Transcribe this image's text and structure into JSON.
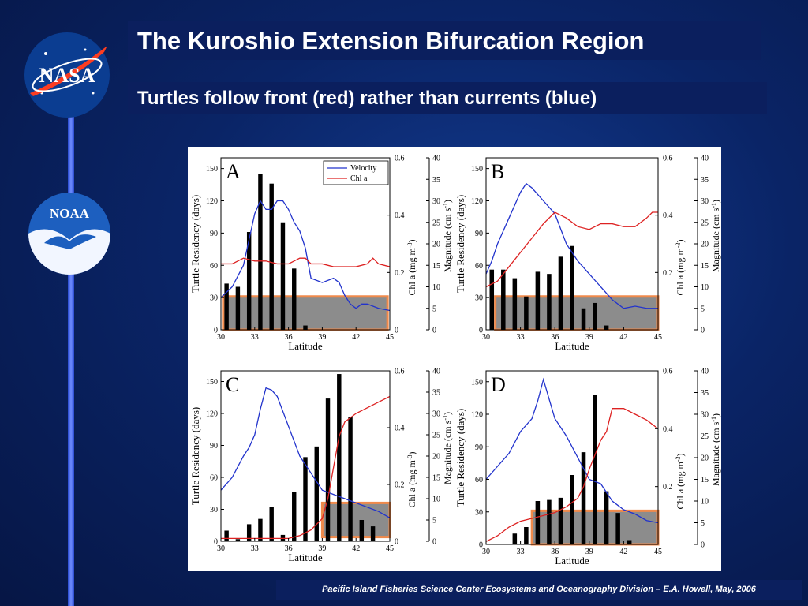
{
  "slide": {
    "title": "The Kuroshio Extension Bifurcation Region",
    "subtitle": "Turtles follow front (red) rather than currents (blue)",
    "footer": "Pacific Island Fisheries Science Center Ecosystems and Oceanography Division – E.A. Howell, May, 2006",
    "logos": {
      "nasa_text": "NASA",
      "noaa_text": "NOAA"
    }
  },
  "colors": {
    "velocity": "#2233cc",
    "chl": "#dd2222",
    "bars": "#000000",
    "box_fill": "#8c8c8c",
    "box_edge": "#f08a4b"
  },
  "chart_data": [
    {
      "panel": "A",
      "type": "bar",
      "xlabel": "Latitude",
      "ylabel": "Turtle Residency (days)",
      "y2label": "Chl a (mg m^-3)",
      "y3label": "Magnitude (cm s^-1)",
      "xlim": [
        30,
        45
      ],
      "ylim": [
        0,
        160
      ],
      "y2lim": [
        0,
        0.6
      ],
      "y3lim": [
        0,
        40
      ],
      "xticks": [
        30,
        33,
        36,
        39,
        42,
        45
      ],
      "yticks": [
        0,
        30,
        60,
        90,
        120,
        150
      ],
      "y2ticks": [
        0,
        0.2,
        0.4,
        0.6
      ],
      "y3ticks": [
        0,
        5,
        10,
        15,
        20,
        25,
        30,
        35,
        40
      ],
      "legend": [
        "Velocity",
        "Chl a"
      ],
      "bars": {
        "x": [
          30.5,
          31.5,
          32.5,
          33.5,
          34.5,
          35.5,
          36.5,
          37.5
        ],
        "values": [
          43,
          40,
          91,
          145,
          136,
          100,
          57,
          4
        ]
      },
      "box": {
        "x": [
          30.2,
          44.8
        ],
        "y": [
          0,
          31
        ]
      },
      "velocity": {
        "x": [
          30,
          31,
          32,
          33,
          33.5,
          34,
          34.5,
          35,
          35.5,
          36,
          36.5,
          37,
          37.5,
          38,
          39,
          40,
          40.5,
          41,
          41.5,
          42,
          42.5,
          43,
          44,
          45
        ],
        "values": [
          7.5,
          10,
          15,
          27,
          30,
          28,
          28,
          30,
          30,
          28,
          25,
          23,
          19,
          12,
          11,
          12,
          11,
          8,
          6,
          5,
          6,
          6,
          5,
          4.5
        ]
      },
      "chl": {
        "x": [
          30,
          31,
          32,
          33,
          34,
          35,
          36,
          36.5,
          37,
          37.5,
          38,
          39,
          40,
          41,
          42,
          43,
          43.5,
          44,
          45
        ],
        "values": [
          0.23,
          0.23,
          0.25,
          0.24,
          0.24,
          0.23,
          0.23,
          0.24,
          0.25,
          0.25,
          0.23,
          0.23,
          0.22,
          0.22,
          0.22,
          0.23,
          0.25,
          0.23,
          0.22
        ]
      }
    },
    {
      "panel": "B",
      "type": "bar",
      "xlabel": "Latitude",
      "ylabel": "Turtle Residency (days)",
      "y2label": "Chl a (mg m^-3)",
      "y3label": "Magnitude (cm s^-1)",
      "xlim": [
        30,
        45
      ],
      "ylim": [
        0,
        160
      ],
      "y2lim": [
        0,
        0.6
      ],
      "y3lim": [
        0,
        40
      ],
      "xticks": [
        30,
        33,
        36,
        39,
        42,
        45
      ],
      "yticks": [
        0,
        30,
        60,
        90,
        120,
        150
      ],
      "y2ticks": [
        0.2,
        0.4,
        0.6
      ],
      "y3ticks": [
        0,
        5,
        10,
        15,
        20,
        25,
        30,
        35,
        40
      ],
      "bars": {
        "x": [
          30.5,
          31.5,
          32.5,
          33.5,
          34.5,
          35.5,
          36.5,
          37.5,
          38.5,
          39.5,
          40.5
        ],
        "values": [
          56,
          56,
          48,
          31,
          54,
          52,
          68,
          78,
          20,
          25,
          4
        ]
      },
      "box": {
        "x": [
          30.8,
          45
        ],
        "y": [
          0,
          31
        ]
      },
      "velocity": {
        "x": [
          30,
          30.5,
          31,
          32,
          33,
          33.5,
          34,
          35,
          36,
          37,
          38,
          39,
          40,
          41,
          42,
          43,
          44,
          45
        ],
        "values": [
          13,
          16,
          20,
          26,
          32,
          34,
          33,
          30,
          27,
          20,
          16,
          13,
          10,
          7,
          5,
          5.5,
          5,
          5
        ]
      },
      "chl": {
        "x": [
          30,
          31,
          32,
          33,
          34,
          35,
          36,
          36.5,
          37,
          38,
          39,
          40,
          41,
          42,
          43,
          44,
          44.5,
          45
        ],
        "values": [
          0.15,
          0.17,
          0.22,
          0.27,
          0.32,
          0.37,
          0.41,
          0.4,
          0.39,
          0.36,
          0.35,
          0.37,
          0.37,
          0.36,
          0.36,
          0.39,
          0.41,
          0.41
        ]
      }
    },
    {
      "panel": "C",
      "type": "bar",
      "xlabel": "Latitude",
      "ylabel": "Turtle Residency (days)",
      "y2label": "Chl a (mg m^-3)",
      "y3label": "Magnitude (cm s^-1)",
      "xlim": [
        30,
        45
      ],
      "ylim": [
        0,
        160
      ],
      "y2lim": [
        0,
        0.6
      ],
      "y3lim": [
        0,
        40
      ],
      "xticks": [
        30,
        33,
        36,
        39,
        42,
        45
      ],
      "yticks": [
        0,
        30,
        60,
        90,
        120,
        150
      ],
      "y2ticks": [
        0,
        0.2,
        0.4,
        0.6
      ],
      "y3ticks": [
        0,
        5,
        10,
        15,
        20,
        25,
        30,
        35,
        40
      ],
      "bars": {
        "x": [
          30.5,
          31.5,
          32.5,
          33.5,
          34.5,
          35.5,
          36.5,
          37.5,
          38.5,
          39.5,
          40.5,
          41.5,
          42.5,
          43.5
        ],
        "values": [
          10,
          2,
          16,
          21,
          32,
          6,
          46,
          79,
          89,
          134,
          157,
          117,
          20,
          14
        ]
      },
      "box": {
        "x": [
          39,
          45
        ],
        "y": [
          4,
          36
        ]
      },
      "velocity": {
        "x": [
          30,
          31,
          32,
          32.5,
          33,
          33.5,
          34,
          34.5,
          35,
          36,
          37,
          38,
          39,
          40,
          41,
          42,
          43,
          44,
          45
        ],
        "values": [
          12,
          15,
          20,
          22,
          25,
          31,
          36,
          35.5,
          34,
          27,
          20,
          16,
          12,
          11,
          10,
          9,
          8,
          7,
          5.5
        ]
      },
      "chl": {
        "x": [
          30,
          32,
          34,
          36,
          37,
          38,
          39,
          39.5,
          40,
          40.5,
          41,
          42,
          43,
          44,
          45
        ],
        "values": [
          0.01,
          0.01,
          0.01,
          0.01,
          0.02,
          0.04,
          0.08,
          0.15,
          0.26,
          0.37,
          0.42,
          0.45,
          0.47,
          0.49,
          0.51
        ]
      }
    },
    {
      "panel": "D",
      "type": "bar",
      "xlabel": "Latitude",
      "ylabel": "Turtle Residency (days)",
      "y2label": "Chl a (mg m^-3)",
      "y3label": "Magnitude (cm s^-1)",
      "xlim": [
        30,
        45
      ],
      "ylim": [
        0,
        160
      ],
      "y2lim": [
        0,
        0.6
      ],
      "y3lim": [
        0,
        40
      ],
      "xticks": [
        30,
        33,
        36,
        39,
        42,
        45
      ],
      "yticks": [
        0,
        30,
        60,
        90,
        120,
        150
      ],
      "y2ticks": [
        0.2,
        0.4,
        0.6
      ],
      "y3ticks": [
        0,
        5,
        10,
        15,
        20,
        25,
        30,
        35,
        40
      ],
      "bars": {
        "x": [
          32.5,
          33.5,
          34.5,
          35.5,
          36.5,
          37.5,
          38.5,
          39.5,
          40.5,
          41.5,
          42.5
        ],
        "values": [
          10,
          16,
          40,
          41,
          43,
          64,
          85,
          138,
          49,
          29,
          4
        ]
      },
      "box": {
        "x": [
          34,
          45
        ],
        "y": [
          0,
          31
        ]
      },
      "velocity": {
        "x": [
          30,
          31,
          32,
          33,
          34,
          34.5,
          35,
          36,
          37,
          38,
          39,
          40,
          41,
          42,
          43,
          44,
          45
        ],
        "values": [
          15,
          18,
          21,
          26,
          29,
          33,
          38,
          29,
          25,
          20,
          15,
          14,
          10,
          8,
          7,
          5.5,
          5
        ]
      },
      "chl": {
        "x": [
          30,
          31,
          32,
          33,
          34,
          35,
          36,
          37,
          38,
          38.5,
          39,
          40,
          40.5,
          41,
          42,
          43,
          44,
          45
        ],
        "values": [
          0.01,
          0.03,
          0.06,
          0.08,
          0.09,
          0.1,
          0.11,
          0.13,
          0.16,
          0.2,
          0.26,
          0.36,
          0.39,
          0.47,
          0.47,
          0.45,
          0.43,
          0.4
        ]
      }
    }
  ]
}
